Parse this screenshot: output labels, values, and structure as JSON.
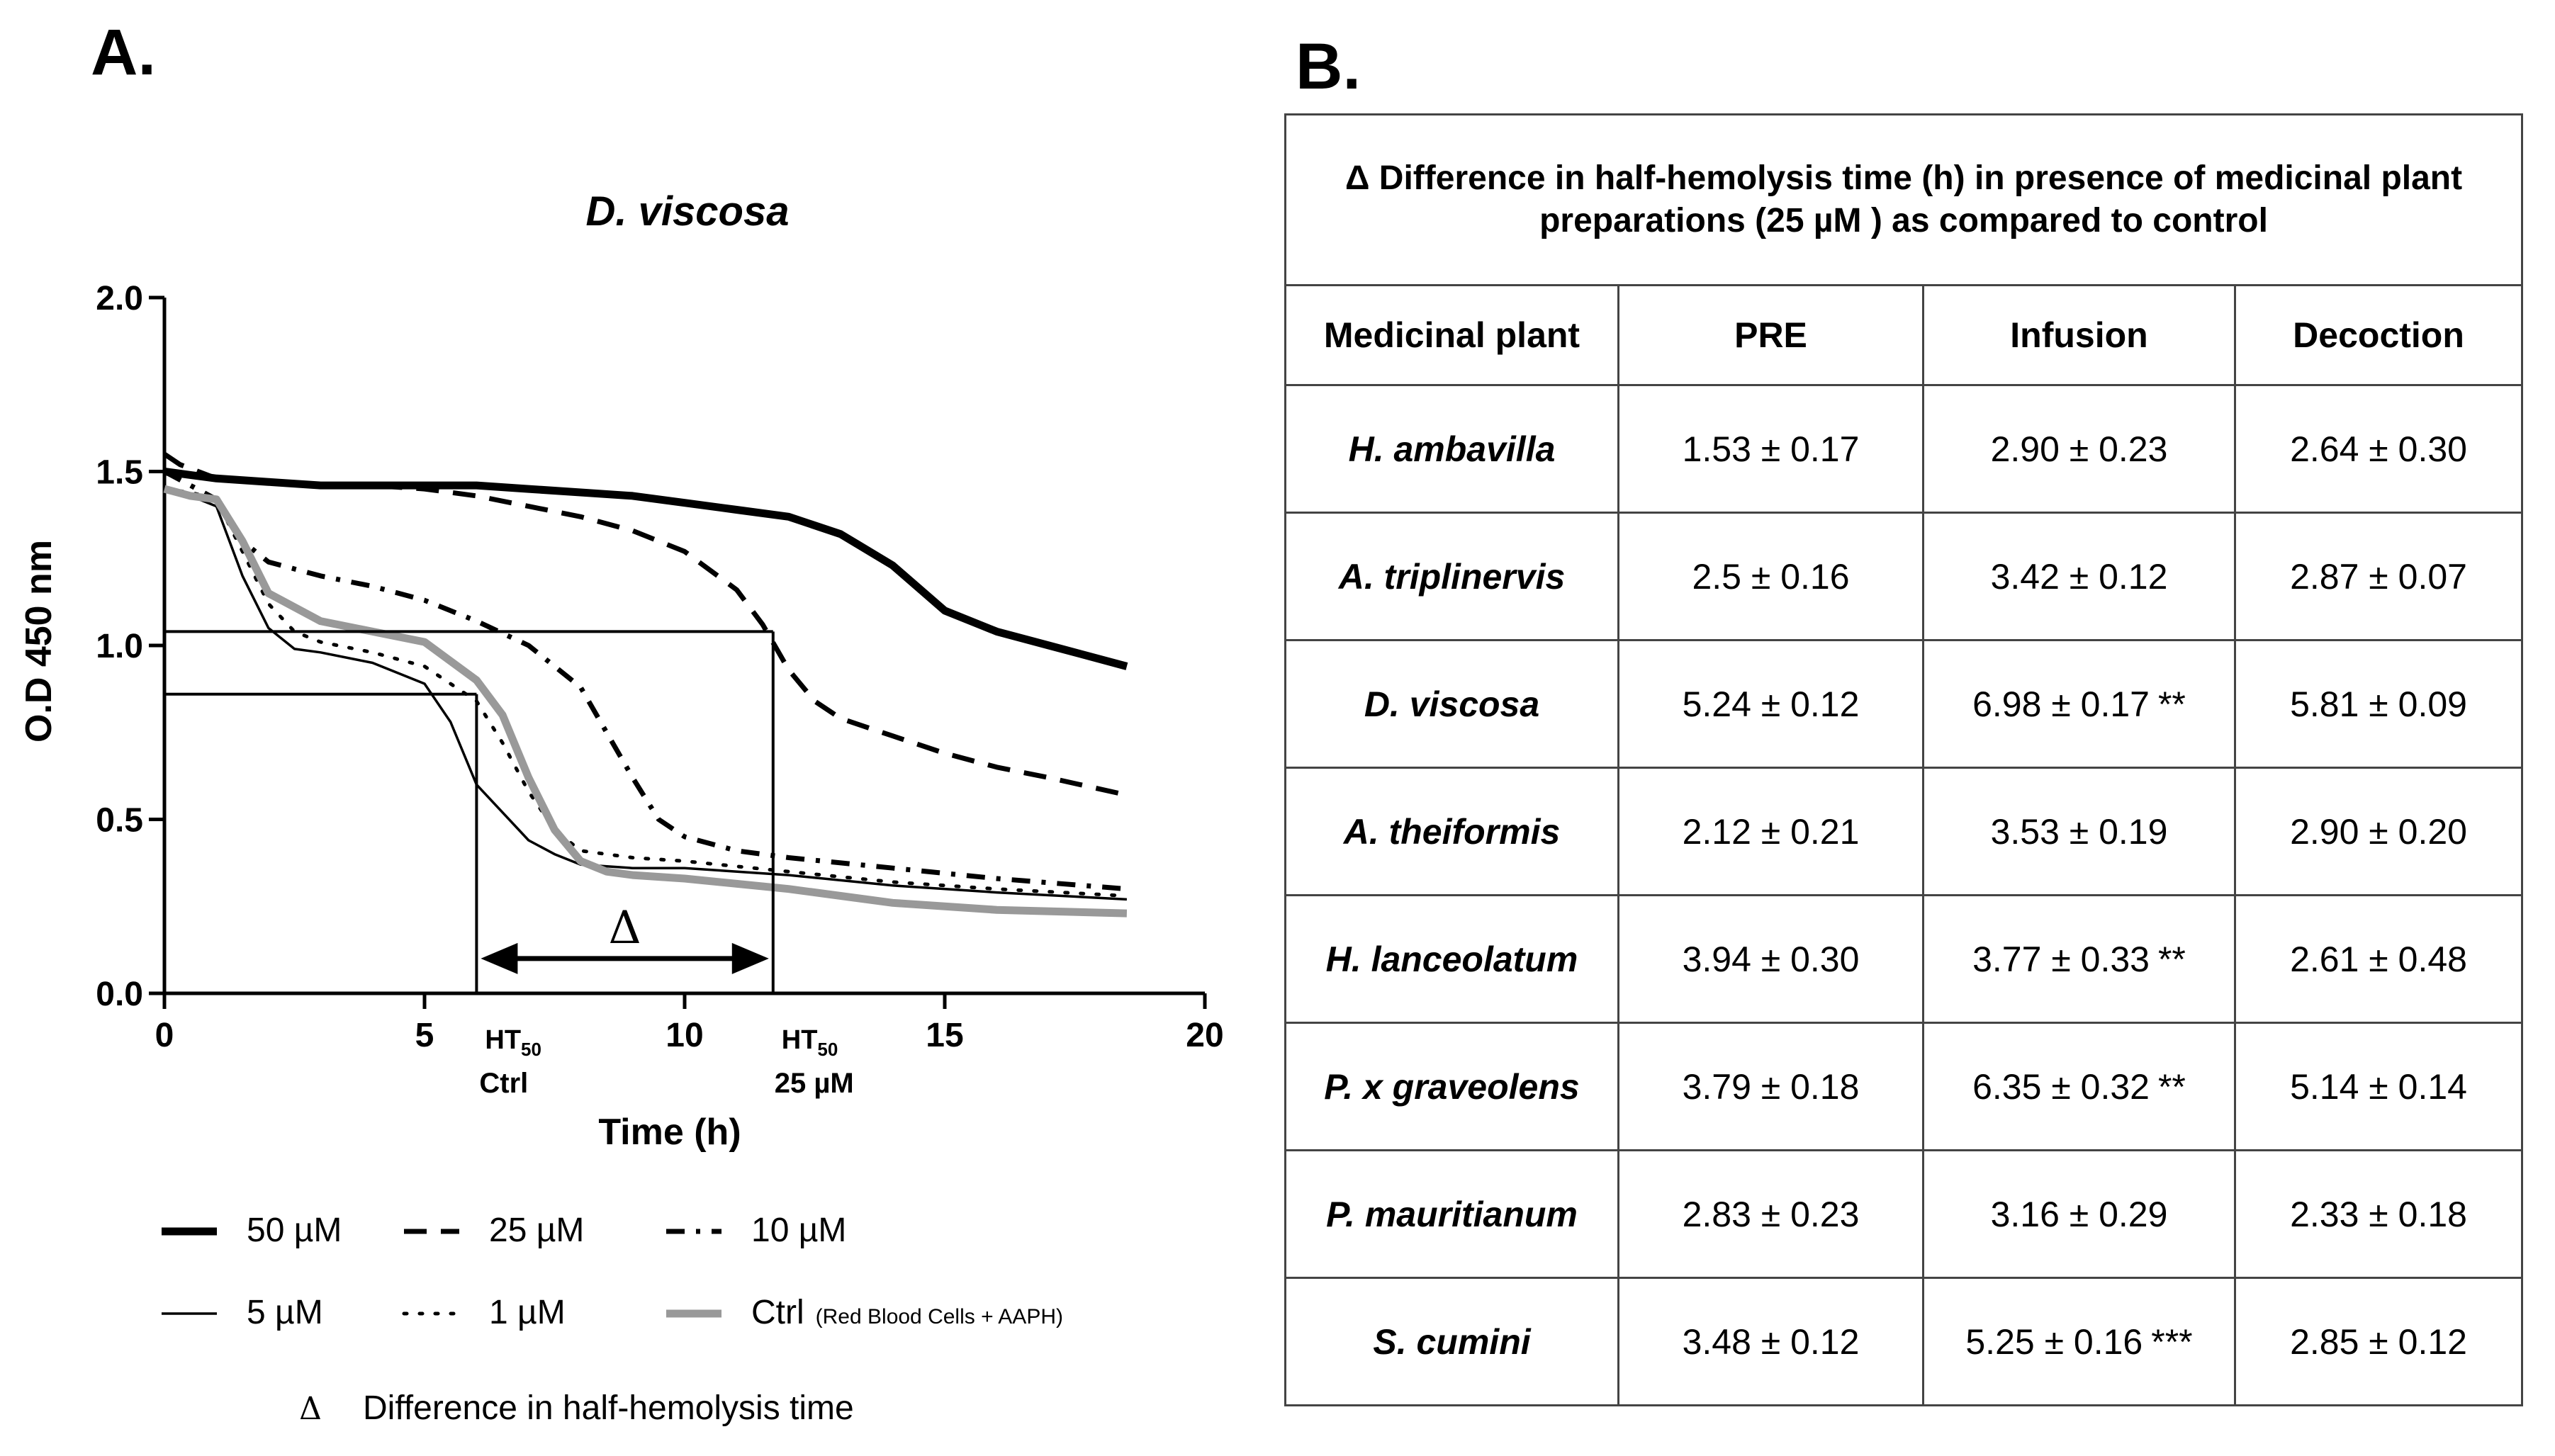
{
  "panel_a_label": "A.",
  "panel_b_label": "B.",
  "chart_data": {
    "type": "line",
    "title": "D. viscosa",
    "xlabel": "Time (h)",
    "ylabel": "O.D 450 nm",
    "xlim": [
      0,
      20
    ],
    "ylim": [
      0,
      2.0
    ],
    "x_ticks": [
      "0",
      "5",
      "10",
      "15",
      "20"
    ],
    "y_ticks": [
      "0.0",
      "0.5",
      "1.0",
      "1.5",
      "2.0"
    ],
    "series": [
      {
        "name": "50 µM",
        "style": "thick-solid",
        "color": "#000000",
        "x": [
          0,
          0.5,
          1,
          2,
          3,
          4,
          5,
          6,
          7,
          8,
          9,
          10,
          11,
          12,
          13,
          14,
          15,
          16,
          17,
          18.5
        ],
        "y": [
          1.5,
          1.49,
          1.48,
          1.47,
          1.46,
          1.46,
          1.46,
          1.46,
          1.45,
          1.44,
          1.43,
          1.41,
          1.39,
          1.37,
          1.32,
          1.23,
          1.1,
          1.04,
          1.0,
          0.94
        ]
      },
      {
        "name": "25 µM",
        "style": "dashed",
        "color": "#000000",
        "x": [
          0,
          0.3,
          1,
          2,
          3,
          4,
          5,
          6,
          7,
          8,
          9,
          10,
          11,
          11.5,
          12,
          12.5,
          13,
          14,
          15,
          16,
          17,
          18.5
        ],
        "y": [
          1.55,
          1.52,
          1.48,
          1.47,
          1.46,
          1.46,
          1.45,
          1.43,
          1.4,
          1.37,
          1.33,
          1.27,
          1.16,
          1.06,
          0.93,
          0.84,
          0.79,
          0.74,
          0.69,
          0.65,
          0.62,
          0.57
        ]
      },
      {
        "name": "10 µM",
        "style": "dash-dot",
        "color": "#000000",
        "x": [
          0,
          0.5,
          1,
          1.5,
          2,
          3,
          4,
          5,
          6,
          7,
          8,
          8.5,
          9,
          9.5,
          10,
          11,
          12,
          14,
          16,
          18.5
        ],
        "y": [
          1.5,
          1.46,
          1.42,
          1.3,
          1.24,
          1.2,
          1.17,
          1.13,
          1.07,
          1.0,
          0.88,
          0.75,
          0.62,
          0.5,
          0.45,
          0.41,
          0.39,
          0.36,
          0.33,
          0.3
        ]
      },
      {
        "name": "5 µM",
        "style": "thin-solid",
        "color": "#000000",
        "x": [
          0,
          0.5,
          1,
          1.5,
          2,
          2.5,
          3,
          4,
          5,
          5.5,
          6,
          6.5,
          7,
          7.5,
          8,
          9,
          10,
          12,
          14,
          16,
          18.5
        ],
        "y": [
          1.45,
          1.43,
          1.4,
          1.2,
          1.05,
          0.99,
          0.98,
          0.95,
          0.89,
          0.78,
          0.6,
          0.52,
          0.44,
          0.4,
          0.37,
          0.36,
          0.36,
          0.34,
          0.31,
          0.29,
          0.27
        ]
      },
      {
        "name": "1 µM",
        "style": "dotted",
        "color": "#000000",
        "x": [
          0,
          0.5,
          1,
          1.5,
          2,
          2.5,
          3,
          4,
          5,
          6,
          6.5,
          7,
          7.5,
          8,
          9,
          10,
          12,
          14,
          16,
          18.5
        ],
        "y": [
          1.45,
          1.44,
          1.42,
          1.27,
          1.12,
          1.04,
          1.01,
          0.98,
          0.94,
          0.84,
          0.72,
          0.58,
          0.47,
          0.41,
          0.39,
          0.38,
          0.35,
          0.32,
          0.3,
          0.28
        ]
      },
      {
        "name": "Ctrl",
        "note": "(Red Blood Cells + AAPH)",
        "style": "thick-gray",
        "color": "#999999",
        "x": [
          0,
          0.5,
          1,
          1.5,
          2,
          3,
          4,
          5,
          6,
          6.5,
          7,
          7.5,
          8,
          8.5,
          9,
          10,
          12,
          14,
          16,
          18.5
        ],
        "y": [
          1.45,
          1.43,
          1.42,
          1.3,
          1.15,
          1.07,
          1.04,
          1.01,
          0.9,
          0.8,
          0.62,
          0.47,
          0.38,
          0.35,
          0.34,
          0.33,
          0.3,
          0.26,
          0.24,
          0.23
        ]
      }
    ],
    "annotations": {
      "ht50_ctrl": {
        "x": 6.0,
        "y": 0.86,
        "label_line1": "HT",
        "label_sub": "50",
        "label_line2": "Ctrl"
      },
      "ht50_25": {
        "x": 11.7,
        "y": 1.04,
        "label_line1": "HT",
        "label_sub": "50",
        "label_line2": "25 µM"
      },
      "delta_symbol": "Δ",
      "delta_y": 0.1
    },
    "legend": {
      "items": [
        "50 µM",
        "25 µM",
        "10 µM",
        "5 µM",
        "1 µM",
        "Ctrl"
      ],
      "ctrl_note": "(Red Blood Cells + AAPH)",
      "delta_symbol": "Δ",
      "delta_text": "Difference in half-hemolysis time"
    }
  },
  "table": {
    "caption": "Δ Difference in half-hemolysis time (h) in presence of medicinal plant preparations (25 µM ) as compared to control",
    "headers": [
      "Medicinal plant",
      "PRE",
      "Infusion",
      "Decoction"
    ],
    "rows": [
      {
        "plant": "H. ambavilla",
        "pre": "1.53 ± 0.17",
        "infusion": "2.90 ± 0.23",
        "infusion_sig": "",
        "decoction": "2.64 ± 0.30"
      },
      {
        "plant": "A. triplinervis",
        "pre": "2.5 ± 0.16",
        "infusion": "3.42 ± 0.12",
        "infusion_sig": "",
        "decoction": "2.87 ± 0.07"
      },
      {
        "plant": "D. viscosa",
        "pre": "5.24 ± 0.12",
        "infusion": "6.98 ± 0.17",
        "infusion_sig": "**",
        "decoction": "5.81 ± 0.09"
      },
      {
        "plant": "A. theiformis",
        "pre": "2.12 ± 0.21",
        "infusion": "3.53 ± 0.19",
        "infusion_sig": "",
        "decoction": "2.90 ± 0.20"
      },
      {
        "plant": "H. lanceolatum",
        "pre": "3.94 ± 0.30",
        "infusion": "3.77 ± 0.33",
        "infusion_sig": "**",
        "decoction": "2.61 ± 0.48"
      },
      {
        "plant": "P. x graveolens",
        "pre": "3.79 ± 0.18",
        "infusion": "6.35 ± 0.32",
        "infusion_sig": "**",
        "decoction": "5.14 ± 0.14"
      },
      {
        "plant": "P. mauritianum",
        "pre": "2.83 ± 0.23",
        "infusion": "3.16 ± 0.29",
        "infusion_sig": "",
        "decoction": "2.33 ± 0.18"
      },
      {
        "plant": "S. cumini",
        "pre": "3.48 ± 0.12",
        "infusion": "5.25 ± 0.16",
        "infusion_sig": "***",
        "decoction": "2.85 ± 0.12"
      }
    ]
  }
}
